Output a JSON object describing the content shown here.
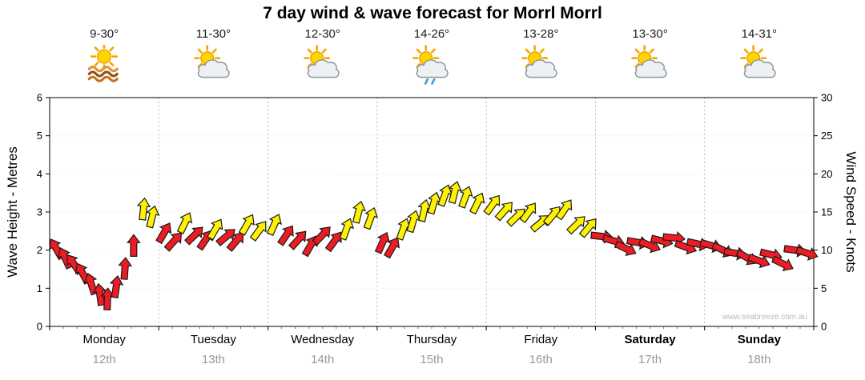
{
  "title": "7 day wind & wave forecast for Morrl Morrl",
  "watermark": "www.seabreeze.com.au",
  "axes": {
    "left_label": "Wave Height - Metres",
    "right_label": "Wind Speed - Knots",
    "left_ticks": [
      "0",
      "1",
      "2",
      "3",
      "4",
      "5",
      "6"
    ],
    "right_ticks": [
      "0",
      "5",
      "10",
      "15",
      "20",
      "25",
      "30"
    ]
  },
  "days": [
    {
      "name": "Monday",
      "date": "12th",
      "temp": "9-30°",
      "icon": "sun-waves",
      "weekend": false
    },
    {
      "name": "Tuesday",
      "date": "13th",
      "temp": "11-30°",
      "icon": "sun-cloud",
      "weekend": false
    },
    {
      "name": "Wednesday",
      "date": "14th",
      "temp": "12-30°",
      "icon": "sun-cloud",
      "weekend": false
    },
    {
      "name": "Thursday",
      "date": "15th",
      "temp": "14-26°",
      "icon": "sun-cloud-rain",
      "weekend": false
    },
    {
      "name": "Friday",
      "date": "16th",
      "temp": "13-28°",
      "icon": "sun-cloud",
      "weekend": false
    },
    {
      "name": "Saturday",
      "date": "17th",
      "temp": "13-30°",
      "icon": "sun-cloud",
      "weekend": true
    },
    {
      "name": "Sunday",
      "date": "18th",
      "temp": "14-31°",
      "icon": "sun-cloud",
      "weekend": true
    }
  ],
  "colors": {
    "arrow_red": "#ed1c24",
    "arrow_yellow": "#fff200",
    "arrow_outline": "#1a1a1a",
    "grid": "#b5b5b5",
    "grid_light": "#ececec",
    "axis": "#000000",
    "tick_minor": "#2f8f8f",
    "date_text": "#999999",
    "watermark_text": "#b8b8b8"
  },
  "chart_data": {
    "type": "scatter",
    "title": "7 day wind & wave forecast for Morrl Morrl",
    "description": "Wind arrows over 7 days; y value = wind speed in knots (right axis) equivalent to wave height in metres (left axis, 6 m = 30 kn); arrow rotation = wind direction; color = wind strength band (red lighter, yellow stronger)",
    "x_range_days": [
      0,
      7
    ],
    "x_categories": [
      "Monday 12th",
      "Tuesday 13th",
      "Wednesday 14th",
      "Thursday 15th",
      "Friday 16th",
      "Saturday 17th",
      "Sunday 18th"
    ],
    "left_axis": {
      "label": "Wave Height - Metres",
      "range": [
        0,
        6
      ]
    },
    "right_axis": {
      "label": "Wind Speed - Knots",
      "range": [
        0,
        30
      ]
    },
    "grid": "vertical day separators, dashed",
    "legend": "none",
    "points": [
      {
        "day": 0.06,
        "knots": 10.2,
        "dir": -30,
        "color": "red"
      },
      {
        "day": 0.14,
        "knots": 9.0,
        "dir": -25,
        "color": "red"
      },
      {
        "day": 0.22,
        "knots": 8.2,
        "dir": -35,
        "color": "red"
      },
      {
        "day": 0.3,
        "knots": 7.0,
        "dir": -28,
        "color": "red"
      },
      {
        "day": 0.38,
        "knots": 5.6,
        "dir": -18,
        "color": "red"
      },
      {
        "day": 0.46,
        "knots": 4.2,
        "dir": -8,
        "color": "red"
      },
      {
        "day": 0.53,
        "knots": 3.6,
        "dir": 2,
        "color": "red"
      },
      {
        "day": 0.61,
        "knots": 5.2,
        "dir": 8,
        "color": "red"
      },
      {
        "day": 0.69,
        "knots": 7.6,
        "dir": 4,
        "color": "red"
      },
      {
        "day": 0.77,
        "knots": 10.6,
        "dir": 0,
        "color": "red"
      },
      {
        "day": 0.86,
        "knots": 15.4,
        "dir": 6,
        "color": "yellow"
      },
      {
        "day": 0.94,
        "knots": 14.4,
        "dir": 14,
        "color": "yellow"
      },
      {
        "day": 1.05,
        "knots": 12.3,
        "dir": 30,
        "color": "red"
      },
      {
        "day": 1.14,
        "knots": 11.2,
        "dir": 42,
        "color": "red"
      },
      {
        "day": 1.24,
        "knots": 13.6,
        "dir": 26,
        "color": "yellow"
      },
      {
        "day": 1.33,
        "knots": 12.0,
        "dir": 46,
        "color": "red"
      },
      {
        "day": 1.43,
        "knots": 11.4,
        "dir": 34,
        "color": "red"
      },
      {
        "day": 1.52,
        "knots": 12.8,
        "dir": 30,
        "color": "yellow"
      },
      {
        "day": 1.62,
        "knots": 11.8,
        "dir": 50,
        "color": "red"
      },
      {
        "day": 1.71,
        "knots": 11.2,
        "dir": 40,
        "color": "red"
      },
      {
        "day": 1.81,
        "knots": 13.4,
        "dir": 30,
        "color": "yellow"
      },
      {
        "day": 1.92,
        "knots": 12.6,
        "dir": 36,
        "color": "yellow"
      },
      {
        "day": 2.06,
        "knots": 13.4,
        "dir": 24,
        "color": "yellow"
      },
      {
        "day": 2.17,
        "knots": 12.0,
        "dir": 34,
        "color": "red"
      },
      {
        "day": 2.28,
        "knots": 11.4,
        "dir": 42,
        "color": "red"
      },
      {
        "day": 2.39,
        "knots": 10.6,
        "dir": 30,
        "color": "red"
      },
      {
        "day": 2.5,
        "knots": 12.0,
        "dir": 44,
        "color": "red"
      },
      {
        "day": 2.61,
        "knots": 11.2,
        "dir": 36,
        "color": "red"
      },
      {
        "day": 2.72,
        "knots": 12.8,
        "dir": 20,
        "color": "yellow"
      },
      {
        "day": 2.83,
        "knots": 15.0,
        "dir": 14,
        "color": "yellow"
      },
      {
        "day": 2.94,
        "knots": 14.2,
        "dir": 20,
        "color": "yellow"
      },
      {
        "day": 3.05,
        "knots": 11.0,
        "dir": 24,
        "color": "red"
      },
      {
        "day": 3.14,
        "knots": 10.4,
        "dir": 30,
        "color": "red"
      },
      {
        "day": 3.24,
        "knots": 12.8,
        "dir": 20,
        "color": "yellow"
      },
      {
        "day": 3.33,
        "knots": 13.8,
        "dir": 16,
        "color": "yellow"
      },
      {
        "day": 3.43,
        "knots": 15.2,
        "dir": 12,
        "color": "yellow"
      },
      {
        "day": 3.52,
        "knots": 16.2,
        "dir": 16,
        "color": "yellow"
      },
      {
        "day": 3.62,
        "knots": 17.2,
        "dir": 20,
        "color": "yellow"
      },
      {
        "day": 3.71,
        "knots": 17.6,
        "dir": 14,
        "color": "yellow"
      },
      {
        "day": 3.81,
        "knots": 17.0,
        "dir": 20,
        "color": "yellow"
      },
      {
        "day": 3.92,
        "knots": 16.2,
        "dir": 26,
        "color": "yellow"
      },
      {
        "day": 4.06,
        "knots": 16.0,
        "dir": 36,
        "color": "yellow"
      },
      {
        "day": 4.17,
        "knots": 15.2,
        "dir": 42,
        "color": "yellow"
      },
      {
        "day": 4.28,
        "knots": 14.4,
        "dir": 46,
        "color": "yellow"
      },
      {
        "day": 4.39,
        "knots": 15.0,
        "dir": 36,
        "color": "yellow"
      },
      {
        "day": 4.5,
        "knots": 13.6,
        "dir": 50,
        "color": "yellow"
      },
      {
        "day": 4.61,
        "knots": 14.6,
        "dir": 40,
        "color": "yellow"
      },
      {
        "day": 4.72,
        "knots": 15.4,
        "dir": 34,
        "color": "yellow"
      },
      {
        "day": 4.83,
        "knots": 13.4,
        "dir": 46,
        "color": "yellow"
      },
      {
        "day": 4.94,
        "knots": 13.0,
        "dir": 40,
        "color": "yellow"
      },
      {
        "day": 5.06,
        "knots": 11.8,
        "dir": 96,
        "color": "red"
      },
      {
        "day": 5.17,
        "knots": 11.2,
        "dir": 106,
        "color": "red"
      },
      {
        "day": 5.28,
        "knots": 10.2,
        "dir": 116,
        "color": "red"
      },
      {
        "day": 5.39,
        "knots": 11.0,
        "dir": 100,
        "color": "red"
      },
      {
        "day": 5.5,
        "knots": 10.6,
        "dir": 112,
        "color": "red"
      },
      {
        "day": 5.61,
        "knots": 11.2,
        "dir": 104,
        "color": "red"
      },
      {
        "day": 5.72,
        "knots": 11.6,
        "dir": 96,
        "color": "red"
      },
      {
        "day": 5.83,
        "knots": 10.4,
        "dir": 110,
        "color": "red"
      },
      {
        "day": 5.94,
        "knots": 10.8,
        "dir": 102,
        "color": "red"
      },
      {
        "day": 6.06,
        "knots": 10.6,
        "dir": 106,
        "color": "red"
      },
      {
        "day": 6.17,
        "knots": 10.0,
        "dir": 116,
        "color": "red"
      },
      {
        "day": 6.28,
        "knots": 9.6,
        "dir": 100,
        "color": "red"
      },
      {
        "day": 6.39,
        "knots": 9.0,
        "dir": 120,
        "color": "red"
      },
      {
        "day": 6.5,
        "knots": 8.6,
        "dir": 110,
        "color": "red"
      },
      {
        "day": 6.61,
        "knots": 9.4,
        "dir": 104,
        "color": "red"
      },
      {
        "day": 6.72,
        "knots": 8.2,
        "dir": 116,
        "color": "red"
      },
      {
        "day": 6.83,
        "knots": 10.0,
        "dir": 98,
        "color": "red"
      },
      {
        "day": 6.94,
        "knots": 9.6,
        "dir": 108,
        "color": "red"
      }
    ]
  }
}
